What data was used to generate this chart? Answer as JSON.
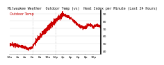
{
  "title": "Milwaukee Weather  Outdoor Temp (vs)  Heat Index per Minute (Last 24 Hours)",
  "bg_color": "#ffffff",
  "line_color": "#cc0000",
  "grid_color": "#dddddd",
  "yticks": [
    40,
    50,
    60,
    70,
    80,
    90
  ],
  "ylim": [
    36,
    94
  ],
  "xlim": [
    0,
    1439
  ],
  "vlines_x": [
    360,
    720
  ],
  "title_fontsize": 3.5,
  "tick_fontsize": 3.2,
  "subtitle": "  Outdoor Temp"
}
